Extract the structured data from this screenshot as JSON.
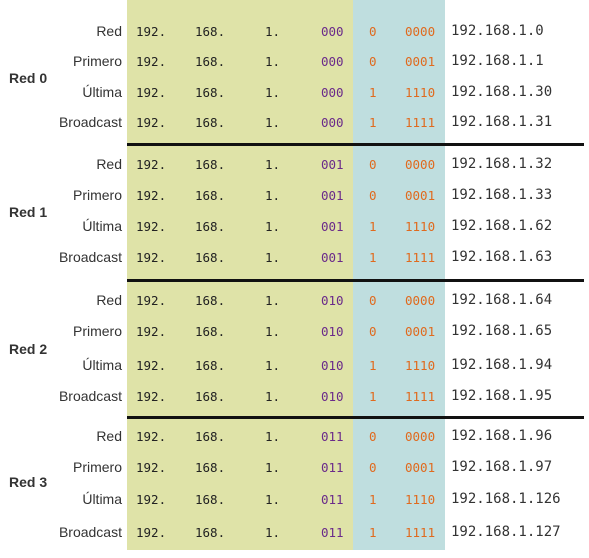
{
  "colors": {
    "network_bits": "#dfe3a8",
    "host_bits": "#bfdedf",
    "subnet_bits_text": "#6a2a8a",
    "host_bits_text": "#e06a1e"
  },
  "networks": [
    {
      "label": "Red 0",
      "rows": [
        {
          "label": "Red",
          "o1": "192.",
          "o2": "168.",
          "o3": "1.",
          "subnet": "000",
          "bit": "0",
          "host": "0000",
          "decimal": "192.168.1.0"
        },
        {
          "label": "Primero",
          "o1": "192.",
          "o2": "168.",
          "o3": "1.",
          "subnet": "000",
          "bit": "0",
          "host": "0001",
          "decimal": "192.168.1.1"
        },
        {
          "label": "Última",
          "o1": "192.",
          "o2": "168.",
          "o3": "1.",
          "subnet": "000",
          "bit": "1",
          "host": "1110",
          "decimal": "192.168.1.30"
        },
        {
          "label": "Broadcast",
          "o1": "192.",
          "o2": "168.",
          "o3": "1.",
          "subnet": "000",
          "bit": "1",
          "host": "1111",
          "decimal": "192.168.1.31"
        }
      ]
    },
    {
      "label": "Red 1",
      "rows": [
        {
          "label": "Red",
          "o1": "192.",
          "o2": "168.",
          "o3": "1.",
          "subnet": "001",
          "bit": "0",
          "host": "0000",
          "decimal": "192.168.1.32"
        },
        {
          "label": "Primero",
          "o1": "192.",
          "o2": "168.",
          "o3": "1.",
          "subnet": "001",
          "bit": "0",
          "host": "0001",
          "decimal": "192.168.1.33"
        },
        {
          "label": "Última",
          "o1": "192.",
          "o2": "168.",
          "o3": "1.",
          "subnet": "001",
          "bit": "1",
          "host": "1110",
          "decimal": "192.168.1.62"
        },
        {
          "label": "Broadcast",
          "o1": "192.",
          "o2": "168.",
          "o3": "1.",
          "subnet": "001",
          "bit": "1",
          "host": "1111",
          "decimal": "192.168.1.63"
        }
      ]
    },
    {
      "label": "Red 2",
      "rows": [
        {
          "label": "Red",
          "o1": "192.",
          "o2": "168.",
          "o3": "1.",
          "subnet": "010",
          "bit": "0",
          "host": "0000",
          "decimal": "192.168.1.64"
        },
        {
          "label": "Primero",
          "o1": "192.",
          "o2": "168.",
          "o3": "1.",
          "subnet": "010",
          "bit": "0",
          "host": "0001",
          "decimal": "192.168.1.65"
        },
        {
          "label": "Última",
          "o1": "192.",
          "o2": "168.",
          "o3": "1.",
          "subnet": "010",
          "bit": "1",
          "host": "1110",
          "decimal": "192.168.1.94"
        },
        {
          "label": "Broadcast",
          "o1": "192.",
          "o2": "168.",
          "o3": "1.",
          "subnet": "010",
          "bit": "1",
          "host": "1111",
          "decimal": "192.168.1.95"
        }
      ]
    },
    {
      "label": "Red 3",
      "rows": [
        {
          "label": "Red",
          "o1": "192.",
          "o2": "168.",
          "o3": "1.",
          "subnet": "011",
          "bit": "0",
          "host": "0000",
          "decimal": "192.168.1.96"
        },
        {
          "label": "Primero",
          "o1": "192.",
          "o2": "168.",
          "o3": "1.",
          "subnet": "011",
          "bit": "0",
          "host": "0001",
          "decimal": "192.168.1.97"
        },
        {
          "label": "Última",
          "o1": "192.",
          "o2": "168.",
          "o3": "1.",
          "subnet": "011",
          "bit": "1",
          "host": "1110",
          "decimal": "192.168.1.126"
        },
        {
          "label": "Broadcast",
          "o1": "192.",
          "o2": "168.",
          "o3": "1.",
          "subnet": "011",
          "bit": "1",
          "host": "1111",
          "decimal": "192.168.1.127"
        }
      ]
    }
  ]
}
